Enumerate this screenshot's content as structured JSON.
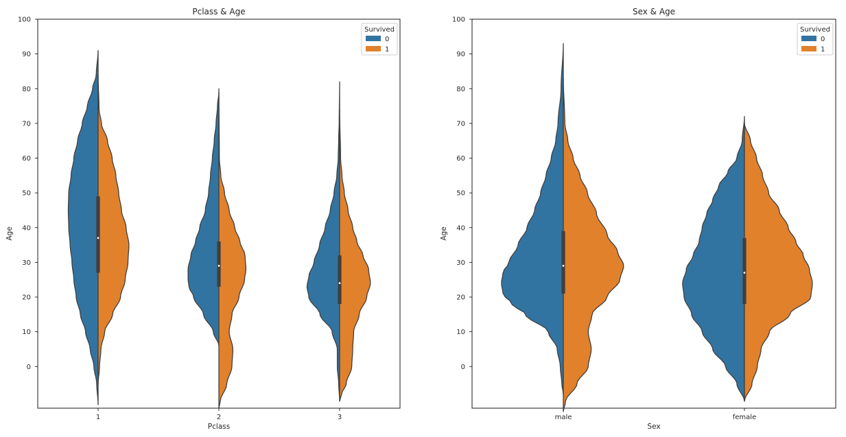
{
  "colors": {
    "survived_0": "#3274a1",
    "survived_1": "#e1812c",
    "outline": "#3f3f3f",
    "box": "#3f3f3f"
  },
  "chart_data": [
    {
      "type": "violin",
      "title": "Pclass & Age",
      "xlabel": "Pclass",
      "ylabel": "Age",
      "ylim": [
        -12,
        100
      ],
      "yticks": [
        0,
        10,
        20,
        30,
        40,
        50,
        60,
        70,
        80,
        90,
        100
      ],
      "categories": [
        "1",
        "2",
        "3"
      ],
      "split": true,
      "grid": false,
      "legend": {
        "title": "Survived",
        "entries": [
          "0",
          "1"
        ],
        "position": "top-right"
      },
      "series": [
        {
          "name": "0",
          "violins": [
            {
              "category": "1",
              "min": -11,
              "max": 91,
              "profile": [
                [
                  -11,
                  0
                ],
                [
                  -5,
                  0.03
                ],
                [
                  0,
                  0.09
                ],
                [
                  5,
                  0.17
                ],
                [
                  10,
                  0.27
                ],
                [
                  15,
                  0.38
                ],
                [
                  20,
                  0.47
                ],
                [
                  25,
                  0.52
                ],
                [
                  30,
                  0.56
                ],
                [
                  35,
                  0.6
                ],
                [
                  40,
                  0.63
                ],
                [
                  45,
                  0.64
                ],
                [
                  50,
                  0.63
                ],
                [
                  55,
                  0.58
                ],
                [
                  60,
                  0.52
                ],
                [
                  65,
                  0.44
                ],
                [
                  70,
                  0.34
                ],
                [
                  75,
                  0.23
                ],
                [
                  80,
                  0.12
                ],
                [
                  84,
                  0.04
                ],
                [
                  91,
                  0
                ]
              ]
            },
            {
              "category": "2",
              "min": 6,
              "max": 79,
              "profile": [
                [
                  6,
                  0
                ],
                [
                  10,
                  0.12
                ],
                [
                  15,
                  0.33
                ],
                [
                  20,
                  0.54
                ],
                [
                  23,
                  0.64
                ],
                [
                  25,
                  0.66
                ],
                [
                  28,
                  0.66
                ],
                [
                  32,
                  0.6
                ],
                [
                  36,
                  0.5
                ],
                [
                  40,
                  0.41
                ],
                [
                  45,
                  0.29
                ],
                [
                  50,
                  0.22
                ],
                [
                  55,
                  0.18
                ],
                [
                  60,
                  0.14
                ],
                [
                  65,
                  0.1
                ],
                [
                  70,
                  0.06
                ],
                [
                  75,
                  0.03
                ],
                [
                  79,
                  0
                ]
              ]
            },
            {
              "category": "3",
              "min": -10,
              "max": 82,
              "profile": [
                [
                  -10,
                  0
                ],
                [
                  -5,
                  0.02
                ],
                [
                  0,
                  0.05
                ],
                [
                  5,
                  0.05
                ],
                [
                  10,
                  0.16
                ],
                [
                  15,
                  0.42
                ],
                [
                  20,
                  0.66
                ],
                [
                  23,
                  0.7
                ],
                [
                  26,
                  0.66
                ],
                [
                  30,
                  0.55
                ],
                [
                  35,
                  0.43
                ],
                [
                  40,
                  0.31
                ],
                [
                  45,
                  0.2
                ],
                [
                  50,
                  0.12
                ],
                [
                  55,
                  0.06
                ],
                [
                  60,
                  0.03
                ],
                [
                  66,
                  0.02
                ],
                [
                  70,
                  0.01
                ],
                [
                  82,
                  0
                ]
              ]
            }
          ]
        },
        {
          "name": "1",
          "violins": [
            {
              "category": "1",
              "min": -5,
              "max": 84,
              "profile": [
                [
                  -5,
                  0
                ],
                [
                  0,
                  0.03
                ],
                [
                  5,
                  0.06
                ],
                [
                  10,
                  0.14
                ],
                [
                  15,
                  0.31
                ],
                [
                  20,
                  0.48
                ],
                [
                  25,
                  0.58
                ],
                [
                  30,
                  0.64
                ],
                [
                  35,
                  0.66
                ],
                [
                  40,
                  0.6
                ],
                [
                  45,
                  0.5
                ],
                [
                  50,
                  0.44
                ],
                [
                  55,
                  0.38
                ],
                [
                  60,
                  0.3
                ],
                [
                  65,
                  0.2
                ],
                [
                  70,
                  0.07
                ],
                [
                  74,
                  0.02
                ],
                [
                  84,
                  0
                ]
              ]
            },
            {
              "category": "2",
              "min": -12,
              "max": 80,
              "profile": [
                [
                  -12,
                  0
                ],
                [
                  -10,
                  0.03
                ],
                [
                  -5,
                  0.17
                ],
                [
                  0,
                  0.28
                ],
                [
                  5,
                  0.3
                ],
                [
                  10,
                  0.22
                ],
                [
                  15,
                  0.28
                ],
                [
                  20,
                  0.43
                ],
                [
                  25,
                  0.55
                ],
                [
                  28,
                  0.58
                ],
                [
                  32,
                  0.56
                ],
                [
                  36,
                  0.45
                ],
                [
                  40,
                  0.34
                ],
                [
                  45,
                  0.22
                ],
                [
                  50,
                  0.12
                ],
                [
                  55,
                  0.04
                ],
                [
                  60,
                  0.01
                ],
                [
                  80,
                  0
                ]
              ]
            },
            {
              "category": "3",
              "min": -10,
              "max": 74,
              "profile": [
                [
                  -10,
                  0
                ],
                [
                  -8,
                  0.04
                ],
                [
                  -5,
                  0.14
                ],
                [
                  0,
                  0.26
                ],
                [
                  5,
                  0.28
                ],
                [
                  10,
                  0.3
                ],
                [
                  15,
                  0.42
                ],
                [
                  20,
                  0.58
                ],
                [
                  24,
                  0.66
                ],
                [
                  28,
                  0.62
                ],
                [
                  32,
                  0.5
                ],
                [
                  36,
                  0.37
                ],
                [
                  40,
                  0.28
                ],
                [
                  45,
                  0.18
                ],
                [
                  50,
                  0.1
                ],
                [
                  55,
                  0.05
                ],
                [
                  60,
                  0.02
                ],
                [
                  74,
                  0
                ]
              ]
            }
          ]
        }
      ],
      "boxes": [
        {
          "category": "1",
          "q1": 27,
          "median": 37,
          "q3": 49
        },
        {
          "category": "2",
          "q1": 23,
          "median": 29,
          "q3": 36
        },
        {
          "category": "3",
          "q1": 18,
          "median": 24,
          "q3": 32
        }
      ]
    },
    {
      "type": "violin",
      "title": "Sex & Age",
      "xlabel": "Sex",
      "ylabel": "Age",
      "ylim": [
        -12,
        100
      ],
      "yticks": [
        0,
        10,
        20,
        30,
        40,
        50,
        60,
        70,
        80,
        90,
        100
      ],
      "categories": [
        "male",
        "female"
      ],
      "split": true,
      "grid": false,
      "legend": {
        "title": "Survived",
        "entries": [
          "0",
          "1"
        ],
        "position": "top-right"
      },
      "series": [
        {
          "name": "0",
          "violins": [
            {
              "category": "male",
              "min": -8,
              "max": 93,
              "profile": [
                [
                  -8,
                  0
                ],
                [
                  -5,
                  0.02
                ],
                [
                  0,
                  0.04
                ],
                [
                  5,
                  0.08
                ],
                [
                  10,
                  0.2
                ],
                [
                  15,
                  0.5
                ],
                [
                  18,
                  0.68
                ],
                [
                  21,
                  0.8
                ],
                [
                  24,
                  0.82
                ],
                [
                  27,
                  0.8
                ],
                [
                  30,
                  0.72
                ],
                [
                  35,
                  0.6
                ],
                [
                  40,
                  0.48
                ],
                [
                  45,
                  0.38
                ],
                [
                  50,
                  0.3
                ],
                [
                  55,
                  0.23
                ],
                [
                  60,
                  0.16
                ],
                [
                  65,
                  0.1
                ],
                [
                  70,
                  0.07
                ],
                [
                  80,
                  0.03
                ],
                [
                  93,
                  0
                ]
              ]
            },
            {
              "category": "female",
              "min": -10,
              "max": 72,
              "profile": [
                [
                  -10,
                  0
                ],
                [
                  -5,
                  0.1
                ],
                [
                  0,
                  0.25
                ],
                [
                  5,
                  0.42
                ],
                [
                  10,
                  0.56
                ],
                [
                  15,
                  0.7
                ],
                [
                  20,
                  0.8
                ],
                [
                  24,
                  0.82
                ],
                [
                  28,
                  0.77
                ],
                [
                  32,
                  0.68
                ],
                [
                  36,
                  0.6
                ],
                [
                  40,
                  0.56
                ],
                [
                  44,
                  0.5
                ],
                [
                  48,
                  0.42
                ],
                [
                  52,
                  0.34
                ],
                [
                  56,
                  0.22
                ],
                [
                  60,
                  0.1
                ],
                [
                  65,
                  0.03
                ],
                [
                  72,
                  0
                ]
              ]
            }
          ]
        },
        {
          "name": "1",
          "violins": [
            {
              "category": "male",
              "min": -13,
              "max": 83,
              "profile": [
                [
                  -13,
                  0
                ],
                [
                  -10,
                  0.03
                ],
                [
                  -5,
                  0.18
                ],
                [
                  0,
                  0.33
                ],
                [
                  5,
                  0.37
                ],
                [
                  10,
                  0.33
                ],
                [
                  15,
                  0.38
                ],
                [
                  20,
                  0.58
                ],
                [
                  25,
                  0.75
                ],
                [
                  29,
                  0.8
                ],
                [
                  33,
                  0.72
                ],
                [
                  38,
                  0.58
                ],
                [
                  44,
                  0.44
                ],
                [
                  50,
                  0.32
                ],
                [
                  55,
                  0.22
                ],
                [
                  60,
                  0.13
                ],
                [
                  65,
                  0.06
                ],
                [
                  70,
                  0.02
                ],
                [
                  83,
                  0
                ]
              ]
            },
            {
              "category": "female",
              "min": -10,
              "max": 70,
              "profile": [
                [
                  -10,
                  0
                ],
                [
                  -5,
                  0.1
                ],
                [
                  0,
                  0.17
                ],
                [
                  5,
                  0.22
                ],
                [
                  10,
                  0.33
                ],
                [
                  15,
                  0.6
                ],
                [
                  20,
                  0.88
                ],
                [
                  24,
                  0.9
                ],
                [
                  28,
                  0.86
                ],
                [
                  32,
                  0.78
                ],
                [
                  36,
                  0.68
                ],
                [
                  40,
                  0.58
                ],
                [
                  45,
                  0.46
                ],
                [
                  50,
                  0.32
                ],
                [
                  55,
                  0.24
                ],
                [
                  60,
                  0.16
                ],
                [
                  65,
                  0.08
                ],
                [
                  70,
                  0
                ]
              ]
            }
          ]
        }
      ],
      "boxes": [
        {
          "category": "male",
          "q1": 21,
          "median": 29,
          "q3": 39
        },
        {
          "category": "female",
          "q1": 18,
          "median": 27,
          "q3": 37
        }
      ]
    }
  ]
}
